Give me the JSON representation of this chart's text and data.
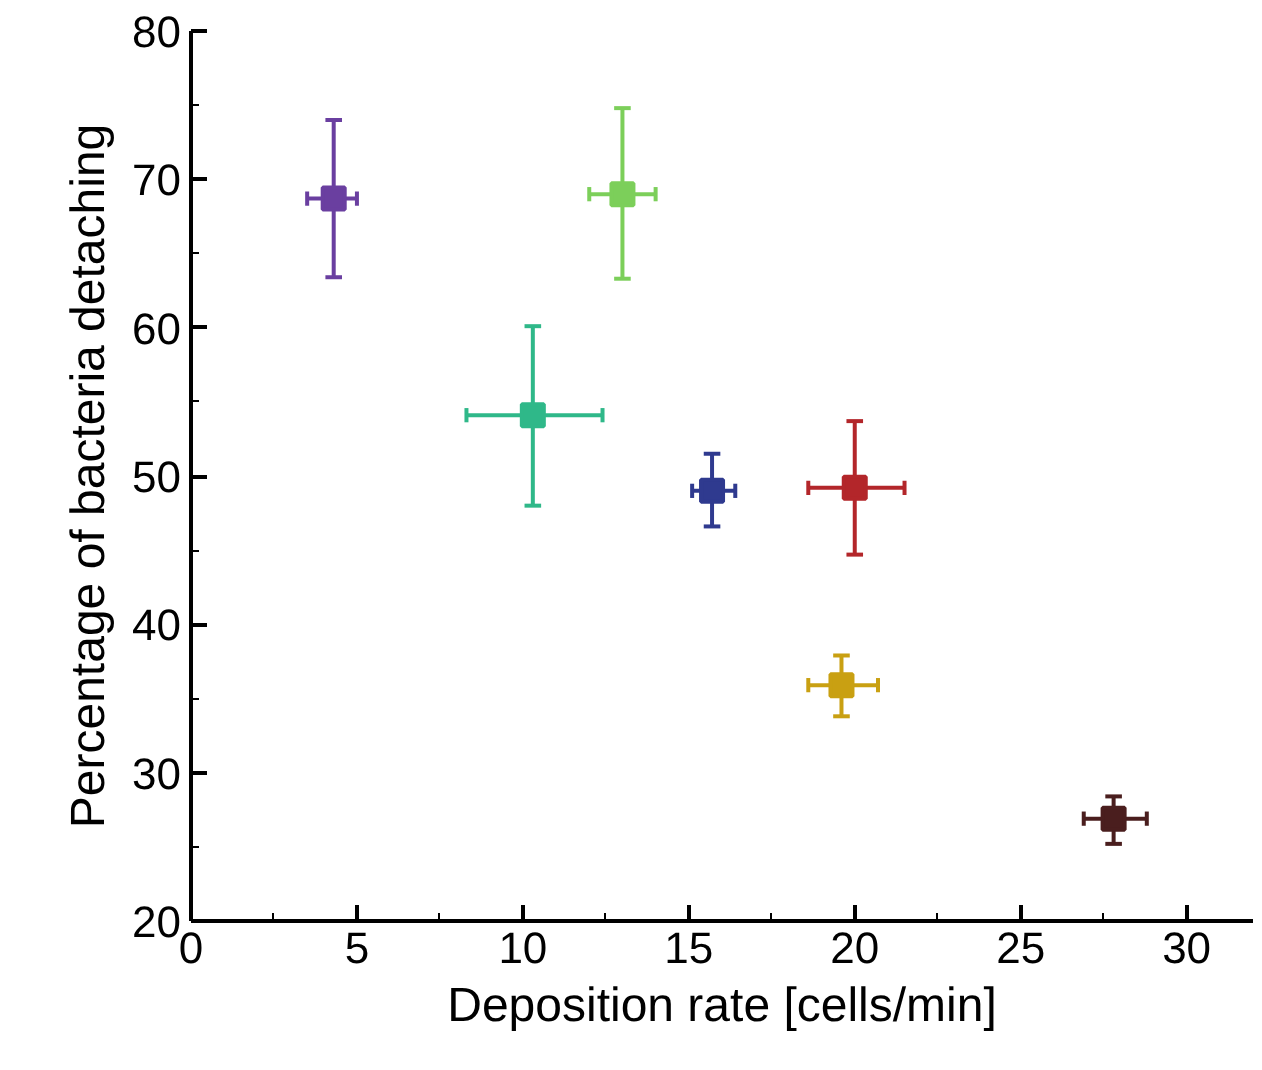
{
  "chart_data": {
    "type": "scatter",
    "xlabel": "Deposition rate [cells/min]",
    "ylabel": "Percentage of bacteria detaching",
    "xlim": [
      0,
      32
    ],
    "ylim": [
      20,
      80
    ],
    "xticks": [
      0,
      5,
      10,
      15,
      20,
      25,
      30
    ],
    "yticks": [
      20,
      30,
      40,
      50,
      60,
      70,
      80
    ],
    "grid": false,
    "marker": "square",
    "series": [
      {
        "color": "#6a3fa0",
        "x": [
          4.3
        ],
        "values": [
          68.7
        ],
        "errors": [
          [
            63.4,
            74.0
          ]
        ],
        "xerrors": [
          [
            3.5,
            5.0
          ]
        ]
      },
      {
        "color": "#7ccf5a",
        "x": [
          13.0
        ],
        "values": [
          69.0
        ],
        "errors": [
          [
            63.3,
            74.8
          ]
        ],
        "xerrors": [
          [
            12.0,
            14.0
          ]
        ]
      },
      {
        "color": "#2fb889",
        "x": [
          10.3
        ],
        "values": [
          54.1
        ],
        "errors": [
          [
            48.0,
            60.1
          ]
        ],
        "xerrors": [
          [
            8.3,
            12.4
          ]
        ]
      },
      {
        "color": "#2f3a8f",
        "x": [
          15.7
        ],
        "values": [
          49.0
        ],
        "errors": [
          [
            46.6,
            51.5
          ]
        ],
        "xerrors": [
          [
            15.1,
            16.4
          ]
        ]
      },
      {
        "color": "#b3262a",
        "x": [
          20.0
        ],
        "values": [
          49.2
        ],
        "errors": [
          [
            44.7,
            53.7
          ]
        ],
        "xerrors": [
          [
            18.6,
            21.5
          ]
        ]
      },
      {
        "color": "#c9a012",
        "x": [
          19.6
        ],
        "values": [
          35.9
        ],
        "errors": [
          [
            33.8,
            37.9
          ]
        ],
        "xerrors": [
          [
            18.6,
            20.7
          ]
        ]
      },
      {
        "color": "#4a1e1e",
        "x": [
          27.8
        ],
        "values": [
          26.9
        ],
        "errors": [
          [
            25.2,
            28.4
          ]
        ],
        "xerrors": [
          [
            26.9,
            28.8
          ]
        ]
      }
    ]
  }
}
